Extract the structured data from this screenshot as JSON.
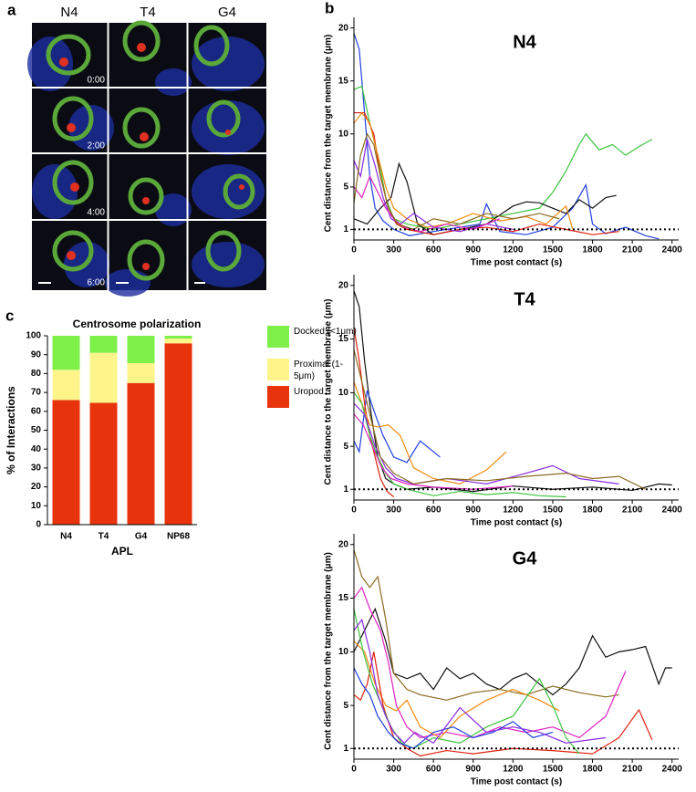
{
  "panel_labels": [
    "a",
    "b",
    "c"
  ],
  "panel_a": {
    "columns": [
      "N4",
      "T4",
      "G4"
    ],
    "times": [
      "0:00",
      "2:00",
      "4:00",
      "6:00"
    ]
  },
  "chart_data": [
    {
      "type": "stacked-bar",
      "title": "Centrosome polarization",
      "y_label": "% of Interactions",
      "x_label": "APL",
      "categories": [
        "N4",
        "T4",
        "G4",
        "NP68"
      ],
      "series": [
        {
          "name": "Uropod",
          "color": "#e8340c",
          "values": [
            66,
            64.5,
            75,
            96
          ]
        },
        {
          "name": "Proximal (1-5μm)",
          "color": "#fdf58a",
          "values": [
            16,
            26.5,
            10.5,
            2.5
          ]
        },
        {
          "name": "Docked (<1μm)",
          "color": "#7ef04a",
          "values": [
            18,
            9,
            14.5,
            1.5
          ]
        }
      ],
      "ylim": [
        0,
        100
      ],
      "yticks": [
        0,
        10,
        20,
        30,
        40,
        50,
        60,
        70,
        80,
        90,
        100
      ]
    },
    {
      "type": "line",
      "title": "N4",
      "y_label": "Cent distance from the target membrane (μm)",
      "x_label": "Time post contact (s)",
      "xlim": [
        0,
        2450
      ],
      "xticks": [
        0,
        300,
        600,
        900,
        1200,
        1500,
        1800,
        2100,
        2400
      ],
      "ylim": [
        0,
        21
      ],
      "yticks": [
        1,
        5,
        10,
        15,
        20
      ],
      "reference_line": 1,
      "series": [
        {
          "color": "#1f3fe0",
          "x": [
            0,
            40,
            80,
            120,
            160,
            220,
            300,
            420,
            600,
            800,
            950,
            1000,
            1100,
            1300,
            1500,
            1650,
            1750,
            1800,
            1900,
            2050,
            2200,
            2300
          ],
          "values": [
            19.5,
            18,
            12,
            6,
            3,
            1.8,
            1,
            0.4,
            0.8,
            1.2,
            1.5,
            3.4,
            0.8,
            0.5,
            1.2,
            3,
            5.2,
            1.5,
            0.6,
            1.2,
            0.4,
            0.1
          ]
        },
        {
          "color": "#3cc43c",
          "x": [
            0,
            60,
            120,
            180,
            240,
            300,
            400,
            600,
            800,
            1000,
            1200,
            1400,
            1500,
            1600,
            1700,
            1750,
            1850,
            1950,
            2050,
            2150,
            2250
          ],
          "values": [
            14.2,
            14.5,
            11,
            8,
            4,
            2,
            1.5,
            1,
            1.5,
            2,
            2.5,
            3,
            4.5,
            6.5,
            9,
            10,
            8.5,
            9,
            8,
            8.8,
            9.5
          ]
        },
        {
          "color": "#111111",
          "x": [
            0,
            100,
            200,
            280,
            340,
            400,
            480,
            600,
            800,
            1000,
            1200,
            1300,
            1400,
            1500,
            1600,
            1700,
            1800,
            1900,
            1980
          ],
          "values": [
            2,
            1.5,
            3,
            4,
            7.2,
            5.5,
            1.5,
            0.5,
            1,
            1.5,
            3.2,
            3.6,
            3.5,
            3,
            2.5,
            3.8,
            3,
            4,
            4.2
          ]
        },
        {
          "color": "#e02010",
          "x": [
            0,
            80,
            150,
            200,
            260,
            320,
            400,
            600,
            800,
            1000,
            1200,
            1400,
            1600,
            1800,
            2000
          ],
          "values": [
            12,
            12,
            10,
            6,
            3,
            1.5,
            1,
            0.5,
            1,
            1.2,
            0.8,
            1.5,
            1,
            0.5,
            0.8
          ]
        },
        {
          "color": "#f08a10",
          "x": [
            0,
            60,
            120,
            180,
            240,
            300,
            400,
            550,
            700,
            900,
            1100,
            1300,
            1450,
            1600,
            1650
          ],
          "values": [
            11,
            12,
            11,
            8,
            5,
            3,
            2,
            1.2,
            1.5,
            2.5,
            1.8,
            2.2,
            1.5,
            3.2,
            1
          ]
        },
        {
          "color": "#8a2be2",
          "x": [
            0,
            50,
            100,
            160,
            220,
            280,
            350,
            450,
            600,
            800,
            1000,
            1200
          ],
          "values": [
            7.5,
            6,
            9.5,
            7,
            4,
            2,
            1.5,
            2.5,
            1.2,
            0.8,
            1.5,
            1
          ]
        },
        {
          "color": "#e020c0",
          "x": [
            0,
            60,
            120,
            180,
            240,
            300,
            380,
            500,
            700,
            900,
            1100
          ],
          "values": [
            5,
            4,
            6,
            4.5,
            3,
            2,
            1.2,
            0.8,
            1.5,
            1,
            2
          ]
        },
        {
          "color": "#8b6b1f",
          "x": [
            0,
            50,
            100,
            150,
            200,
            260,
            330,
            450,
            600,
            800,
            1000,
            1200,
            1400,
            1550
          ],
          "values": [
            3.5,
            8,
            10,
            9,
            6,
            3,
            1.5,
            1,
            2,
            1.5,
            2.5,
            2,
            2.5,
            2
          ]
        }
      ]
    },
    {
      "type": "line",
      "title": "T4",
      "y_label": "Cent distance to the target membrane (μm)",
      "x_label": "Time post contact (s)",
      "xlim": [
        0,
        2450
      ],
      "xticks": [
        0,
        300,
        600,
        900,
        1200,
        1500,
        1800,
        2100,
        2400
      ],
      "ylim": [
        0,
        21
      ],
      "yticks": [
        1,
        5,
        10,
        15,
        20
      ],
      "reference_line": 1,
      "series": [
        {
          "color": "#111111",
          "x": [
            0,
            40,
            80,
            130,
            180,
            240,
            300,
            400,
            600,
            900,
            1200,
            1500,
            1800,
            2100,
            2300,
            2400
          ],
          "values": [
            19.5,
            18,
            13,
            8,
            4,
            2,
            1.5,
            1,
            1.2,
            0.8,
            1.3,
            1,
            1.2,
            0.9,
            1.5,
            1.4
          ]
        },
        {
          "color": "#1f3fe0",
          "x": [
            0,
            40,
            100,
            160,
            220,
            300,
            400,
            500,
            600,
            650
          ],
          "values": [
            5.5,
            4.5,
            10.2,
            8,
            6,
            4,
            3.5,
            5.5,
            4.5,
            4
          ]
        },
        {
          "color": "#e02010",
          "x": [
            0,
            40,
            80,
            120,
            160,
            200,
            250,
            300
          ],
          "values": [
            16,
            13,
            9,
            6,
            4,
            2,
            0.8,
            0.3
          ]
        },
        {
          "color": "#f08a10",
          "x": [
            0,
            60,
            120,
            180,
            260,
            350,
            450,
            600,
            800,
            1000,
            1150
          ],
          "values": [
            11,
            9,
            7,
            6.8,
            7,
            6,
            3,
            2,
            1.5,
            2.8,
            4.5
          ]
        },
        {
          "color": "#3cc43c",
          "x": [
            0,
            60,
            120,
            180,
            240,
            300,
            400,
            600,
            800,
            1000,
            1200,
            1400,
            1600
          ],
          "values": [
            10,
            9,
            6,
            4,
            2.5,
            1.5,
            1,
            0.4,
            0.8,
            0.5,
            0.7,
            0.4,
            0.3
          ]
        },
        {
          "color": "#8a2be2",
          "x": [
            0,
            80,
            160,
            240,
            320,
            450,
            700,
            1000,
            1300,
            1500,
            1700,
            2000
          ],
          "values": [
            9,
            8,
            5,
            3,
            2,
            1.5,
            2,
            1.5,
            2.5,
            3.2,
            2,
            1.5
          ]
        },
        {
          "color": "#8b6b1f",
          "x": [
            0,
            100,
            200,
            300,
            450,
            700,
            1000,
            1300,
            1600,
            1800,
            2000,
            2200
          ],
          "values": [
            14,
            9,
            4,
            2.5,
            1.5,
            2,
            1.8,
            2.2,
            2.5,
            2,
            2.2,
            1
          ]
        },
        {
          "color": "#e020c0",
          "x": [
            0,
            70,
            140,
            210,
            280,
            400,
            600,
            900,
            1200
          ],
          "values": [
            8,
            7,
            5,
            3,
            2,
            1.5,
            1.2,
            1,
            1.3
          ]
        }
      ]
    },
    {
      "type": "line",
      "title": "G4",
      "y_label": "Cent distance from the target membrane (μm)",
      "x_label": "Time post contact (s)",
      "xlim": [
        0,
        2450
      ],
      "xticks": [
        0,
        300,
        600,
        900,
        1200,
        1500,
        1800,
        2100,
        2400
      ],
      "ylim": [
        0,
        21
      ],
      "yticks": [
        1,
        5,
        10,
        15,
        20
      ],
      "reference_line": 1,
      "series": [
        {
          "color": "#111111",
          "x": [
            0,
            80,
            160,
            240,
            300,
            400,
            500,
            600,
            700,
            800,
            900,
            1000,
            1100,
            1200,
            1300,
            1400,
            1500,
            1600,
            1700,
            1800,
            1900,
            2000,
            2100,
            2200,
            2300,
            2350,
            2400
          ],
          "values": [
            10,
            12,
            14,
            11,
            8,
            7.5,
            8,
            6.5,
            8.5,
            7.5,
            8,
            7,
            6.5,
            7.5,
            8,
            7,
            6,
            7,
            8.5,
            11.5,
            9.5,
            10,
            10.2,
            10.5,
            7,
            8.5,
            8.5
          ]
        },
        {
          "color": "#8b6b1f",
          "x": [
            0,
            60,
            120,
            180,
            240,
            300,
            400,
            500,
            700,
            900,
            1100,
            1300,
            1500,
            1700,
            1900,
            2000
          ],
          "values": [
            19.5,
            17,
            16,
            17,
            13,
            8,
            6.5,
            6,
            5.5,
            6.2,
            6.5,
            6,
            6.8,
            6.2,
            5.8,
            6
          ]
        },
        {
          "color": "#e020c0",
          "x": [
            0,
            60,
            120,
            200,
            260,
            320,
            400,
            500,
            700,
            900,
            1100,
            1300,
            1500,
            1700,
            1900,
            2050
          ],
          "values": [
            15,
            16,
            14,
            12,
            9,
            5,
            3,
            2,
            2.5,
            2,
            3,
            2.5,
            3,
            2,
            4,
            8.2
          ]
        },
        {
          "color": "#f08a10",
          "x": [
            0,
            80,
            160,
            240,
            320,
            400,
            500,
            650,
            800,
            1000,
            1200,
            1400,
            1550
          ],
          "values": [
            11,
            10,
            7,
            5,
            4.5,
            5.5,
            3,
            2,
            4,
            5.5,
            6.5,
            5.5,
            4.5
          ]
        },
        {
          "color": "#e02010",
          "x": [
            0,
            50,
            100,
            150,
            220,
            300,
            400,
            500,
            700,
            900,
            1200,
            1500,
            1800,
            2000,
            2150,
            2250
          ],
          "values": [
            6,
            5.5,
            7,
            10,
            5,
            2,
            1,
            0.3,
            0.8,
            0.5,
            1,
            0.8,
            0.5,
            2,
            4.6,
            1.8
          ]
        },
        {
          "color": "#3cc43c",
          "x": [
            0,
            70,
            140,
            210,
            280,
            360,
            450,
            600,
            800,
            1000,
            1200,
            1400,
            1500,
            1600,
            1700
          ],
          "values": [
            14,
            10,
            7,
            5,
            3,
            1.5,
            1,
            2,
            1.5,
            3,
            4,
            7.5,
            5,
            2,
            0.5
          ]
        },
        {
          "color": "#1f3fe0",
          "x": [
            0,
            60,
            120,
            180,
            260,
            340,
            450,
            600,
            750,
            900,
            1050,
            1200,
            1350,
            1500
          ],
          "values": [
            8.5,
            7,
            6,
            4,
            2.5,
            1.5,
            1,
            2.5,
            3,
            2,
            2.5,
            3.5,
            2,
            2.5
          ]
        },
        {
          "color": "#8a2be2",
          "x": [
            0,
            60,
            120,
            180,
            240,
            300,
            380,
            460,
            600,
            800,
            1000,
            1200,
            1400,
            1600,
            1900
          ],
          "values": [
            12,
            13,
            10,
            6,
            4,
            2.5,
            1.5,
            2.5,
            1.5,
            4.8,
            2.5,
            3,
            2.5,
            1.5,
            2
          ]
        }
      ]
    }
  ]
}
